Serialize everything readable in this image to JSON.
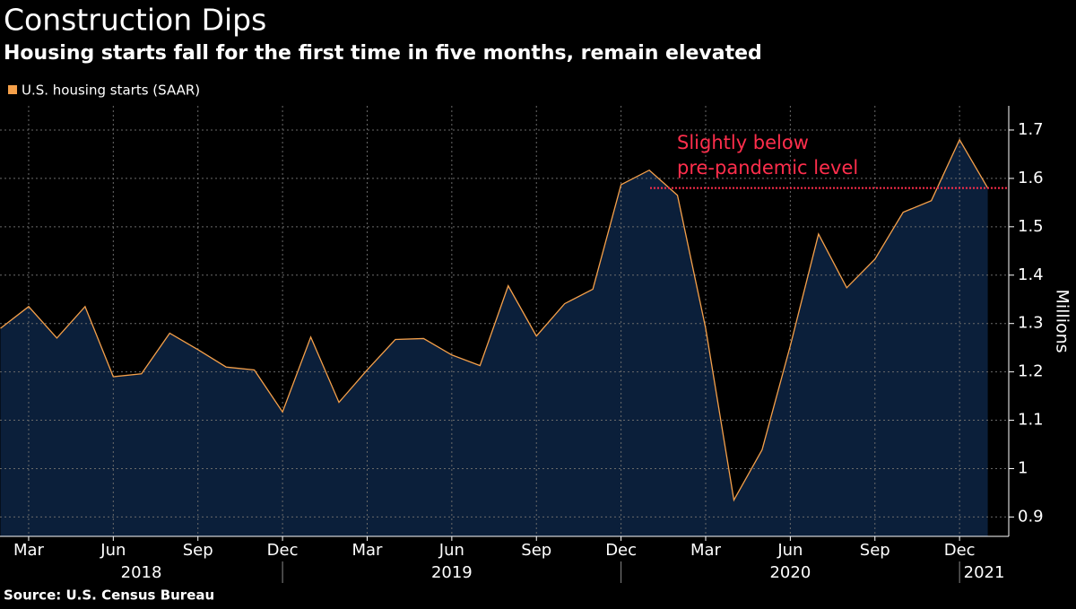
{
  "chart_data": {
    "type": "area",
    "title": "Construction Dips",
    "subtitle": "Housing starts fall for the first time in five months, remain elevated",
    "source": "Source: U.S. Census Bureau",
    "y_axis_label": "Millions",
    "annotation": {
      "text": [
        "Slightly below",
        "pre-pandemic level"
      ],
      "value": 1.58,
      "color": "#ff2e4c"
    },
    "x": [
      "2018-02",
      "2018-03",
      "2018-04",
      "2018-05",
      "2018-06",
      "2018-07",
      "2018-08",
      "2018-09",
      "2018-10",
      "2018-11",
      "2018-12",
      "2019-01",
      "2019-02",
      "2019-03",
      "2019-04",
      "2019-05",
      "2019-06",
      "2019-07",
      "2019-08",
      "2019-09",
      "2019-10",
      "2019-11",
      "2019-12",
      "2020-01",
      "2020-02",
      "2020-03",
      "2020-04",
      "2020-05",
      "2020-06",
      "2020-07",
      "2020-08",
      "2020-09",
      "2020-10",
      "2020-11",
      "2020-12",
      "2021-01"
    ],
    "xticks": [
      {
        "value": "2018-03",
        "label": "Mar"
      },
      {
        "value": "2018-06",
        "label": "Jun"
      },
      {
        "value": "2018-09",
        "label": "Sep"
      },
      {
        "value": "2018-12",
        "label": "Dec"
      },
      {
        "value": "2019-03",
        "label": "Mar"
      },
      {
        "value": "2019-06",
        "label": "Jun"
      },
      {
        "value": "2019-09",
        "label": "Sep"
      },
      {
        "value": "2019-12",
        "label": "Dec"
      },
      {
        "value": "2020-03",
        "label": "Mar"
      },
      {
        "value": "2020-06",
        "label": "Jun"
      },
      {
        "value": "2020-09",
        "label": "Sep"
      },
      {
        "value": "2020-12",
        "label": "Dec"
      }
    ],
    "year_labels": [
      "2018",
      "2019",
      "2020",
      "2021"
    ],
    "series": [
      {
        "name": "U.S. housing starts (SAAR)",
        "color": "#f5a04a",
        "fill": "#0b1f3a",
        "values": [
          1.29,
          1.335,
          1.27,
          1.335,
          1.19,
          1.196,
          1.28,
          1.246,
          1.21,
          1.204,
          1.117,
          1.272,
          1.137,
          1.204,
          1.267,
          1.269,
          1.235,
          1.213,
          1.378,
          1.274,
          1.341,
          1.371,
          1.587,
          1.617,
          1.565,
          1.29,
          0.935,
          1.039,
          1.254,
          1.485,
          1.374,
          1.433,
          1.53,
          1.554,
          1.68,
          1.58
        ]
      }
    ],
    "ylim": [
      0.86,
      1.75
    ],
    "yticks": [
      0.9,
      1.0,
      1.1,
      1.2,
      1.3,
      1.4,
      1.5,
      1.6,
      1.7
    ],
    "grid": true
  }
}
